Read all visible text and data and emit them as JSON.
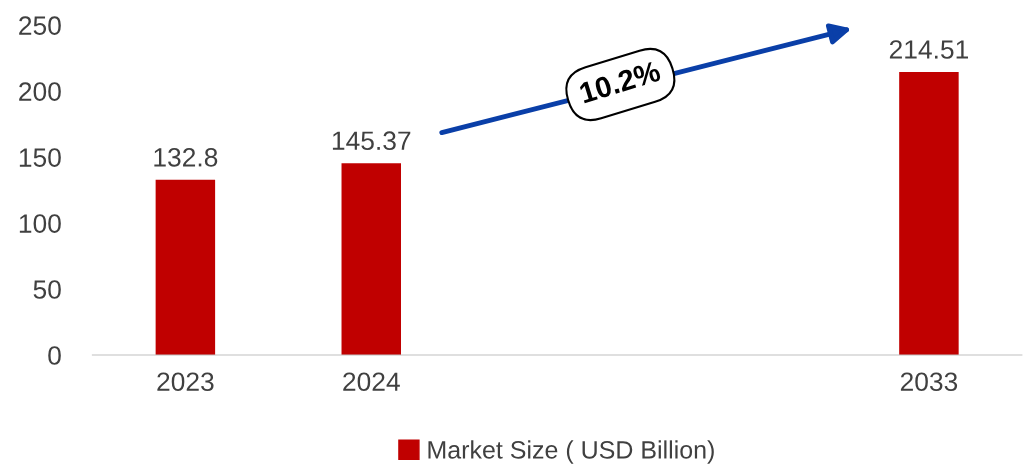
{
  "chart_data": {
    "type": "bar",
    "categories": [
      "2023",
      "2024",
      null,
      null,
      "2033"
    ],
    "series": [
      {
        "name": "Market Size ( USD Billion)",
        "color": "#c00000",
        "values": [
          132.8,
          145.37,
          null,
          null,
          214.51
        ]
      }
    ],
    "ylim": [
      0,
      250
    ],
    "yticks": [
      0,
      50,
      100,
      150,
      200,
      250
    ],
    "data_labels": true,
    "grid": false,
    "legend": "bottom",
    "annotations": [
      "10.2%"
    ]
  }
}
